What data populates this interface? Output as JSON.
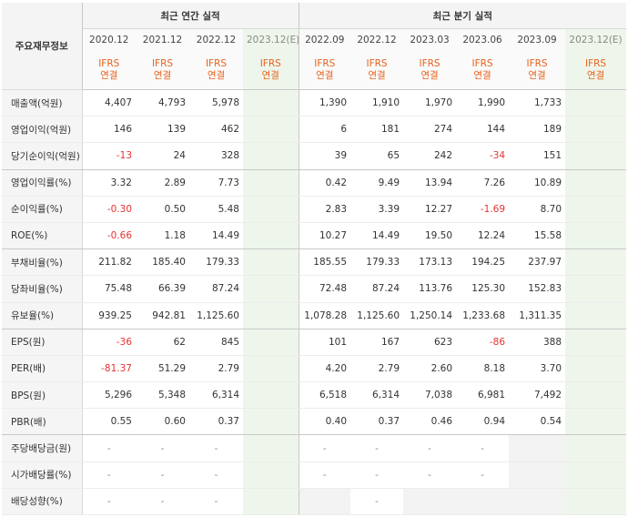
{
  "header": {
    "label_col": "주요재무정보",
    "annual_title": "최근 연간 실적",
    "quarter_title": "최근 분기 실적",
    "periods": [
      "2020.12",
      "2021.12",
      "2022.12",
      "2023.12(E)",
      "2022.09",
      "2022.12",
      "2023.03",
      "2023.06",
      "2023.09",
      "2023.12(E)"
    ],
    "ifrs_top": "IFRS",
    "ifrs_bottom": "연결"
  },
  "rows": [
    {
      "label": "매출액(억원)",
      "values": [
        "4,407",
        "4,793",
        "5,978",
        "",
        "1,390",
        "1,910",
        "1,970",
        "1,990",
        "1,733",
        ""
      ]
    },
    {
      "label": "영업이익(억원)",
      "values": [
        "146",
        "139",
        "462",
        "",
        "6",
        "181",
        "274",
        "144",
        "189",
        ""
      ]
    },
    {
      "label": "당기순이익(억원)",
      "values": [
        "-13",
        "24",
        "328",
        "",
        "39",
        "65",
        "242",
        "-34",
        "151",
        ""
      ]
    },
    {
      "label": "영업이익률(%)",
      "values": [
        "3.32",
        "2.89",
        "7.73",
        "",
        "0.42",
        "9.49",
        "13.94",
        "7.26",
        "10.89",
        ""
      ]
    },
    {
      "label": "순이익률(%)",
      "values": [
        "-0.30",
        "0.50",
        "5.48",
        "",
        "2.83",
        "3.39",
        "12.27",
        "-1.69",
        "8.70",
        ""
      ]
    },
    {
      "label": "ROE(%)",
      "values": [
        "-0.66",
        "1.18",
        "14.49",
        "",
        "10.27",
        "14.49",
        "19.50",
        "12.24",
        "15.58",
        ""
      ]
    },
    {
      "label": "부채비율(%)",
      "values": [
        "211.82",
        "185.40",
        "179.33",
        "",
        "185.55",
        "179.33",
        "173.13",
        "194.25",
        "237.97",
        ""
      ]
    },
    {
      "label": "당좌비율(%)",
      "values": [
        "75.48",
        "66.39",
        "87.24",
        "",
        "72.48",
        "87.24",
        "113.76",
        "125.30",
        "152.83",
        ""
      ]
    },
    {
      "label": "유보율(%)",
      "values": [
        "939.25",
        "942.81",
        "1,125.60",
        "",
        "1,078.28",
        "1,125.60",
        "1,250.14",
        "1,233.68",
        "1,311.35",
        ""
      ]
    },
    {
      "label": "EPS(원)",
      "values": [
        "-36",
        "62",
        "845",
        "",
        "101",
        "167",
        "623",
        "-86",
        "388",
        ""
      ]
    },
    {
      "label": "PER(배)",
      "values": [
        "-81.37",
        "51.29",
        "2.79",
        "",
        "4.20",
        "2.79",
        "2.60",
        "8.18",
        "3.70",
        ""
      ]
    },
    {
      "label": "BPS(원)",
      "values": [
        "5,296",
        "5,348",
        "6,314",
        "",
        "6,518",
        "6,314",
        "7,038",
        "6,981",
        "7,492",
        ""
      ]
    },
    {
      "label": "PBR(배)",
      "values": [
        "0.55",
        "0.60",
        "0.37",
        "",
        "0.40",
        "0.37",
        "0.46",
        "0.94",
        "0.54",
        ""
      ]
    },
    {
      "label": "주당배당금(원)",
      "values": [
        "-",
        "-",
        "-",
        "",
        "-",
        "-",
        "-",
        "-",
        "",
        ""
      ]
    },
    {
      "label": "시가배당률(%)",
      "values": [
        "-",
        "-",
        "-",
        "",
        "-",
        "-",
        "-",
        "-",
        "",
        ""
      ]
    },
    {
      "label": "배당성향(%)",
      "values": [
        "-",
        "-",
        "-",
        "",
        "",
        "-",
        "",
        "",
        "",
        ""
      ]
    }
  ],
  "colors": {
    "negative": "#e63232",
    "ifrs": "#e8611a",
    "estimate_bg": "#eef6ec"
  }
}
